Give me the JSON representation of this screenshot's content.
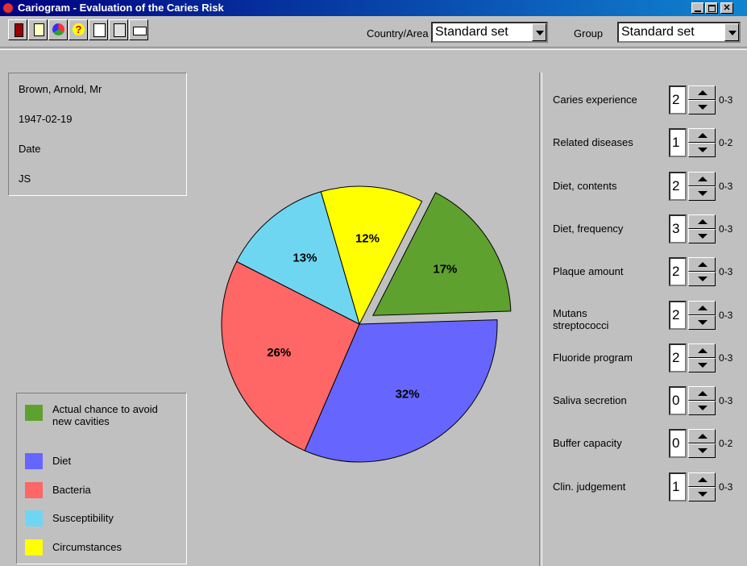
{
  "window": {
    "title": "Cariogram - Evaluation of the Caries Risk"
  },
  "toolbar": {
    "country_label": "Country/Area",
    "country_value": "Standard set",
    "group_label": "Group",
    "group_value": "Standard set"
  },
  "patient": {
    "lines": [
      "Brown, Arnold, Mr",
      "1947-02-19",
      "Date",
      "JS"
    ]
  },
  "chart_data": {
    "type": "pie",
    "categories": [
      "Actual chance to avoid new cavities",
      "Diet",
      "Bacteria",
      "Susceptibility",
      "Circumstances"
    ],
    "values": [
      17,
      32,
      26,
      13,
      12
    ],
    "value_labels": [
      "17%",
      "32%",
      "26%",
      "13%",
      "12%"
    ],
    "colors": [
      "#5fa12f",
      "#6666ff",
      "#ff6666",
      "#6fd6f2",
      "#ffff00"
    ]
  },
  "factors": [
    {
      "label": "Caries experience",
      "value": "2",
      "range": "0-3"
    },
    {
      "label": "Related diseases",
      "value": "1",
      "range": "0-2"
    },
    {
      "label": "Diet, contents",
      "value": "2",
      "range": "0-3"
    },
    {
      "label": "Diet, frequency",
      "value": "3",
      "range": "0-3"
    },
    {
      "label": "Plaque amount",
      "value": "2",
      "range": "0-3"
    },
    {
      "label": "Mutans streptococci",
      "value": "2",
      "range": "0-3"
    },
    {
      "label": "Fluoride program",
      "value": "2",
      "range": "0-3"
    },
    {
      "label": "Saliva secretion",
      "value": "0",
      "range": "0-3"
    },
    {
      "label": "Buffer capacity",
      "value": "0",
      "range": "0-2"
    },
    {
      "label": "Clin. judgement",
      "value": "1",
      "range": "0-3"
    }
  ]
}
